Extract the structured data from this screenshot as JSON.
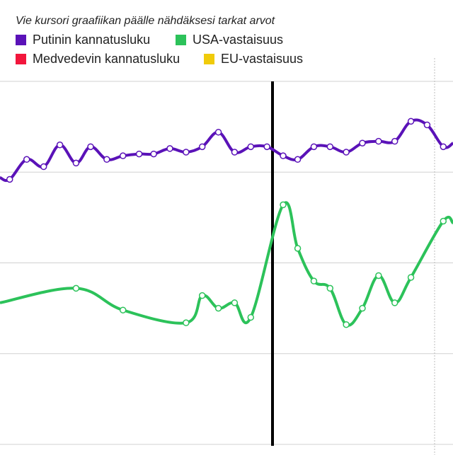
{
  "hint": "Vie kursori graafiikan päälle nähdäksesi tarkat arvot",
  "legend": [
    {
      "name": "Putinin kannatusluku",
      "color": "#5a12b8"
    },
    {
      "name": "USA-vastaisuus",
      "color": "#2cc25a"
    },
    {
      "name": "Medvedevin kannatusluku",
      "color": "#f2163c"
    },
    {
      "name": "EU-vastaisuus",
      "color": "#f0cb0a"
    }
  ],
  "chart_data": {
    "type": "line",
    "title": "",
    "xlabel": "",
    "ylabel": "",
    "xlim": [
      0,
      28
    ],
    "ylim": [
      0,
      100
    ],
    "grid": true,
    "legend_position": "top-left",
    "series": [
      {
        "name": "Putinin kannatusluku",
        "color": "#5a12b8",
        "values": [
          [
            0,
            73.5
          ],
          [
            0.6,
            73
          ],
          [
            1.65,
            78.5
          ],
          [
            2.7,
            76.5
          ],
          [
            3.7,
            82.5
          ],
          [
            4.7,
            77.5
          ],
          [
            5.6,
            82
          ],
          [
            6.6,
            78.5
          ],
          [
            7.6,
            79.5
          ],
          [
            8.6,
            80
          ],
          [
            9.5,
            80
          ],
          [
            10.5,
            81.5
          ],
          [
            11.5,
            80.5
          ],
          [
            12.5,
            82
          ],
          [
            13.5,
            86
          ],
          [
            14.5,
            80.5
          ],
          [
            15.5,
            82
          ],
          [
            16.5,
            82
          ],
          [
            17.5,
            79.5
          ],
          [
            18.4,
            78.5
          ],
          [
            19.4,
            82
          ],
          [
            20.4,
            82
          ],
          [
            21.4,
            80.5
          ],
          [
            22.4,
            83
          ],
          [
            23.4,
            83.5
          ],
          [
            24.4,
            83.5
          ],
          [
            25.4,
            89
          ],
          [
            26.4,
            88
          ],
          [
            27.4,
            82
          ],
          [
            28,
            83
          ]
        ]
      },
      {
        "name": "USA-vastaisuus",
        "color": "#2cc25a",
        "values": [
          [
            0,
            39
          ],
          [
            4.7,
            43
          ],
          [
            7.6,
            37
          ],
          [
            11.5,
            33.5
          ],
          [
            12.5,
            41
          ],
          [
            13.5,
            37.5
          ],
          [
            14.5,
            39
          ],
          [
            15.5,
            35
          ],
          [
            17.5,
            66
          ],
          [
            18.4,
            54
          ],
          [
            19.4,
            45
          ],
          [
            20.4,
            43
          ],
          [
            21.4,
            33
          ],
          [
            22.4,
            37.5
          ],
          [
            23.4,
            46.5
          ],
          [
            24.4,
            39
          ],
          [
            25.4,
            46
          ],
          [
            27.4,
            61.5
          ],
          [
            28,
            61
          ]
        ]
      },
      {
        "name": "Medvedevin kannatusluku",
        "color": "#f2163c",
        "values": []
      },
      {
        "name": "EU-vastaisuus",
        "color": "#f0cb0a",
        "values": []
      }
    ]
  }
}
